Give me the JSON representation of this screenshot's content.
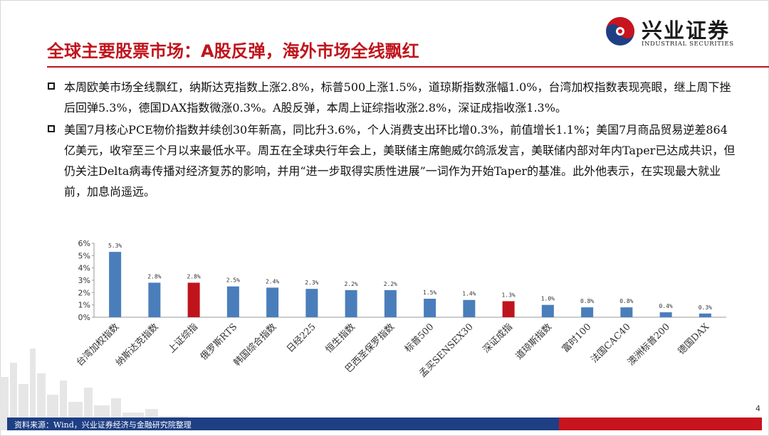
{
  "header": {
    "title": "全球主要股票市场：A股反弹，海外市场全线飘红",
    "logo_cn": "兴业证券",
    "logo_en": "INDUSTRIAL SECURITIES"
  },
  "bullets": [
    "本周欧美市场全线飘红，纳斯达克指数上涨2.8%，标普500上涨1.5%，道琼斯指数涨幅1.0%，台湾加权指数表现亮眼，继上周下挫后回弹5.3%，德国DAX指数微涨0.3%。A股反弹，本周上证综指收涨2.8%，深证成指收涨1.3%。",
    "美国7月核心PCE物价指数并续创30年新高，同比升3.6%，个人消费支出环比增0.3%，前值增长1.1%；美国7月商品贸易逆差864亿美元，收窄至三个月以来最低水平。周五在全球央行年会上，美联储主席鲍威尔鸽派发言，美联储内部对年内Taper已达成共识，但仍关注Delta病毒传播对经济复苏的影响，并用“进一步取得实质性进展”一词作为开始Taper的基准。此外他表示，在实现最大就业前，加息尚遥远。"
  ],
  "chart_data": {
    "type": "bar",
    "categories": [
      "台湾加权指数",
      "纳斯达克指数",
      "上证综指",
      "俄罗斯RTS",
      "韩国综合指数",
      "日经225",
      "恒生指数",
      "巴西圣保罗指数",
      "标普500",
      "孟买SENSEX30",
      "深证成指",
      "道琼斯指数",
      "富时100",
      "法国CAC40",
      "澳洲标普200",
      "德国DAX"
    ],
    "values": [
      5.3,
      2.8,
      2.8,
      2.5,
      2.4,
      2.3,
      2.2,
      2.2,
      1.5,
      1.4,
      1.3,
      1.0,
      0.8,
      0.8,
      0.4,
      0.3
    ],
    "data_labels": [
      "5.3%",
      "2.8%",
      "2.8%",
      "2.5%",
      "2.4%",
      "2.3%",
      "2.2%",
      "2.2%",
      "1.5%",
      "1.4%",
      "1.3%",
      "1.0%",
      "0.8%",
      "0.8%",
      "0.4%",
      "0.3%"
    ],
    "highlight": [
      "上证综指",
      "深证成指"
    ],
    "yticks": [
      "0%",
      "1%",
      "2%",
      "3%",
      "4%",
      "5%",
      "6%"
    ],
    "ylim": [
      0,
      6
    ],
    "colors": {
      "default": "#4a7ebb",
      "highlight": "#c0141c"
    },
    "grid": false
  },
  "footer": {
    "source": "资料来源：Wind，兴业证券经济与金融研究院整理",
    "page": "4"
  }
}
